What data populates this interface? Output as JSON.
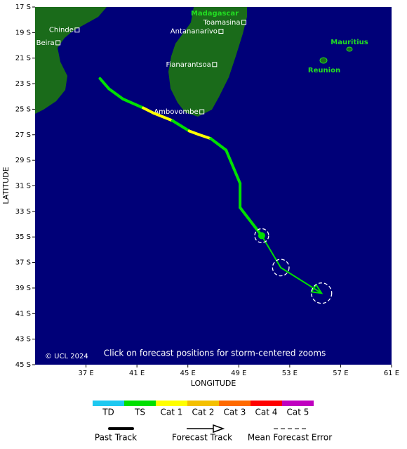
{
  "map": {
    "xlim": [
      33,
      61
    ],
    "ylim": [
      -45,
      -17
    ],
    "xticks": [
      {
        "value": 37,
        "label": "37 E"
      },
      {
        "value": 41,
        "label": "41 E"
      },
      {
        "value": 45,
        "label": "45 E"
      },
      {
        "value": 49,
        "label": "49 E"
      },
      {
        "value": 53,
        "label": "53 E"
      },
      {
        "value": 57,
        "label": "57 E"
      },
      {
        "value": 61,
        "label": "61 E"
      }
    ],
    "yticks": [
      {
        "value": -17,
        "label": "17 S"
      },
      {
        "value": -19,
        "label": "19 S"
      },
      {
        "value": -21,
        "label": "21 S"
      },
      {
        "value": -23,
        "label": "23 S"
      },
      {
        "value": -25,
        "label": "25 S"
      },
      {
        "value": -27,
        "label": "27 S"
      },
      {
        "value": -29,
        "label": "29 S"
      },
      {
        "value": -31,
        "label": "31 S"
      },
      {
        "value": -33,
        "label": "33 S"
      },
      {
        "value": -35,
        "label": "35 S"
      },
      {
        "value": -37,
        "label": "37 S"
      },
      {
        "value": -39,
        "label": "39 S"
      },
      {
        "value": -41,
        "label": "41 S"
      },
      {
        "value": -43,
        "label": "43 S"
      },
      {
        "value": -45,
        "label": "45 S"
      }
    ],
    "xlabel": "LONGITUDE",
    "ylabel": "LATITUDE",
    "copyright": "© UCL 2024",
    "note": "Click on forecast positions for storm-centered zooms",
    "regions": [
      "Madagascar",
      "Mauritius",
      "Reunion"
    ]
  },
  "cities": [
    {
      "name": "Chinde",
      "lon": 36.3,
      "lat": -18.8
    },
    {
      "name": "Beira",
      "lon": 34.8,
      "lat": -19.8
    },
    {
      "name": "Toamasina",
      "lon": 49.4,
      "lat": -18.2
    },
    {
      "name": "Antananarivo",
      "lon": 47.6,
      "lat": -18.9
    },
    {
      "name": "Fianarantsoa",
      "lon": 47.1,
      "lat": -21.5
    },
    {
      "name": "Ambovombe",
      "lon": 46.1,
      "lat": -25.2
    }
  ],
  "past_track": {
    "lon": [
      38.1,
      38.8,
      39.9,
      41.5,
      42.3,
      43.8,
      45.1,
      45.9,
      46.8,
      48.0,
      49.1,
      49.1,
      50.8
    ],
    "lat": [
      -22.6,
      -23.4,
      -24.2,
      -24.9,
      -25.3,
      -25.9,
      -26.7,
      -27.0,
      -27.3,
      -28.2,
      -30.8,
      -32.7,
      -34.9
    ],
    "colors": [
      "#00e000",
      "#00e000",
      "#00e000",
      "#ffff00",
      "#ffff00",
      "#00e000",
      "#ffff00",
      "#ffff00",
      "#00e000",
      "#00e000",
      "#00e000",
      "#00e000",
      "#00e000"
    ]
  },
  "forecast": {
    "lon": [
      50.8,
      52.3,
      55.5
    ],
    "lat": [
      -34.9,
      -37.4,
      -39.4
    ],
    "error_radius": [
      0.55,
      0.65,
      0.8
    ],
    "color": "#00e000"
  },
  "legend": {
    "categories": [
      {
        "label": "TD",
        "color": "#1ec8f0"
      },
      {
        "label": "TS",
        "color": "#00e000"
      },
      {
        "label": "Cat 1",
        "color": "#ffff00"
      },
      {
        "label": "Cat 2",
        "color": "#f4c000"
      },
      {
        "label": "Cat 3",
        "color": "#ff6a00"
      },
      {
        "label": "Cat 4",
        "color": "#ff0000"
      },
      {
        "label": "Cat 5",
        "color": "#c000c0"
      }
    ],
    "past_track": "Past Track",
    "forecast_track": "Forecast Track",
    "error": "Mean Forecast Error"
  }
}
